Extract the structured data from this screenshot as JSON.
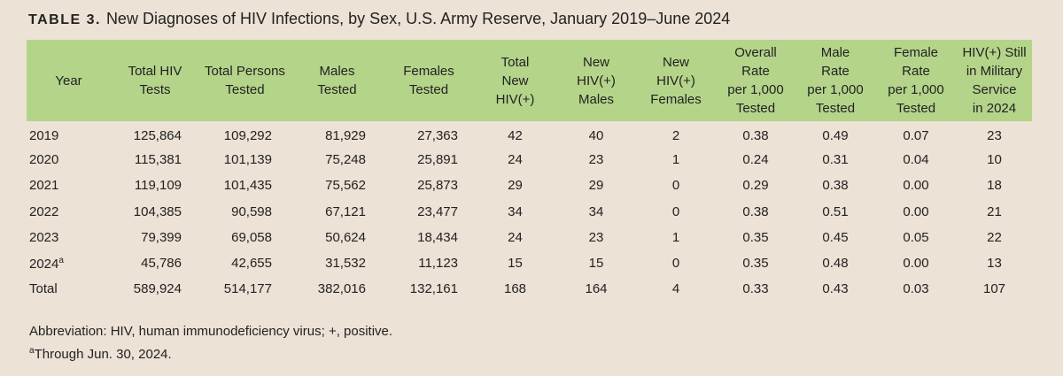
{
  "title": {
    "label": "TABLE 3.",
    "text": "New Diagnoses of HIV Infections, by Sex, U.S. Army Reserve, January 2019–June 2024"
  },
  "table": {
    "header": [
      [
        "Year"
      ],
      [
        "Total HIV",
        "Tests"
      ],
      [
        "Total Persons",
        "Tested"
      ],
      [
        "Males",
        "Tested"
      ],
      [
        "Females",
        "Tested"
      ],
      [
        "Total",
        "New",
        "HIV(+)"
      ],
      [
        "New",
        "HIV(+)",
        "Males"
      ],
      [
        "New",
        "HIV(+)",
        "Females"
      ],
      [
        "Overall",
        "Rate",
        "per 1,000",
        "Tested"
      ],
      [
        "Male",
        "Rate",
        "per 1,000",
        "Tested"
      ],
      [
        "Female",
        "Rate",
        "per 1,000",
        "Tested"
      ],
      [
        "HIV(+) Still",
        "in Military",
        "Service",
        "in 2024"
      ]
    ],
    "rows": [
      [
        "2019",
        "125,864",
        "109,292",
        "81,929",
        "27,363",
        "42",
        "40",
        "2",
        "0.38",
        "0.49",
        "0.07",
        "23"
      ],
      [
        "2020",
        "115,381",
        "101,139",
        "75,248",
        "25,891",
        "24",
        "23",
        "1",
        "0.24",
        "0.31",
        "0.04",
        "10"
      ],
      [
        "2021",
        "119,109",
        "101,435",
        "75,562",
        "25,873",
        "29",
        "29",
        "0",
        "0.29",
        "0.38",
        "0.00",
        "18"
      ],
      [
        "2022",
        "104,385",
        "90,598",
        "67,121",
        "23,477",
        "34",
        "34",
        "0",
        "0.38",
        "0.51",
        "0.00",
        "21"
      ],
      [
        "2023",
        "79,399",
        "69,058",
        "50,624",
        "18,434",
        "24",
        "23",
        "1",
        "0.35",
        "0.45",
        "0.05",
        "22"
      ],
      [
        "2024",
        "45,786",
        "42,655",
        "31,532",
        "11,123",
        "15",
        "15",
        "0",
        "0.35",
        "0.48",
        "0.00",
        "13"
      ],
      [
        "Total",
        "589,924",
        "514,177",
        "382,016",
        "132,161",
        "168",
        "164",
        "4",
        "0.33",
        "0.43",
        "0.03",
        "107"
      ]
    ]
  },
  "notes": [
    {
      "text": "Abbreviation: HIV, human immunodeficiency virus; +, positive."
    },
    {
      "marker": "a",
      "text": "Through Jun. 30, 2024."
    }
  ]
}
